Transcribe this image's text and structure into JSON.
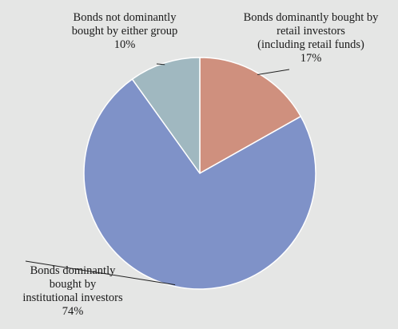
{
  "chart_data": {
    "type": "pie",
    "slices": [
      {
        "name": "Bonds dominantly bought by retail investors (including retail funds)",
        "value": 17,
        "color": "#cf907e",
        "label_lines": [
          "Bonds dominantly bought by",
          "retail investors",
          "(including retail funds)"
        ],
        "pct_label": "17%"
      },
      {
        "name": "Bonds dominantly bought by institutional investors",
        "value": 74,
        "color": "#7f92c8",
        "label_lines": [
          "Bonds dominantly",
          "bought by",
          "institutional investors"
        ],
        "pct_label": "74%"
      },
      {
        "name": "Bonds not dominantly bought by either group",
        "value": 10,
        "color": "#a0b8c0",
        "label_lines": [
          "Bonds not dominantly",
          "bought by either group"
        ],
        "pct_label": "10%"
      }
    ],
    "start": "12 o'clock",
    "direction": "clockwise",
    "slice_border": "#ffffff",
    "legend": "none"
  }
}
